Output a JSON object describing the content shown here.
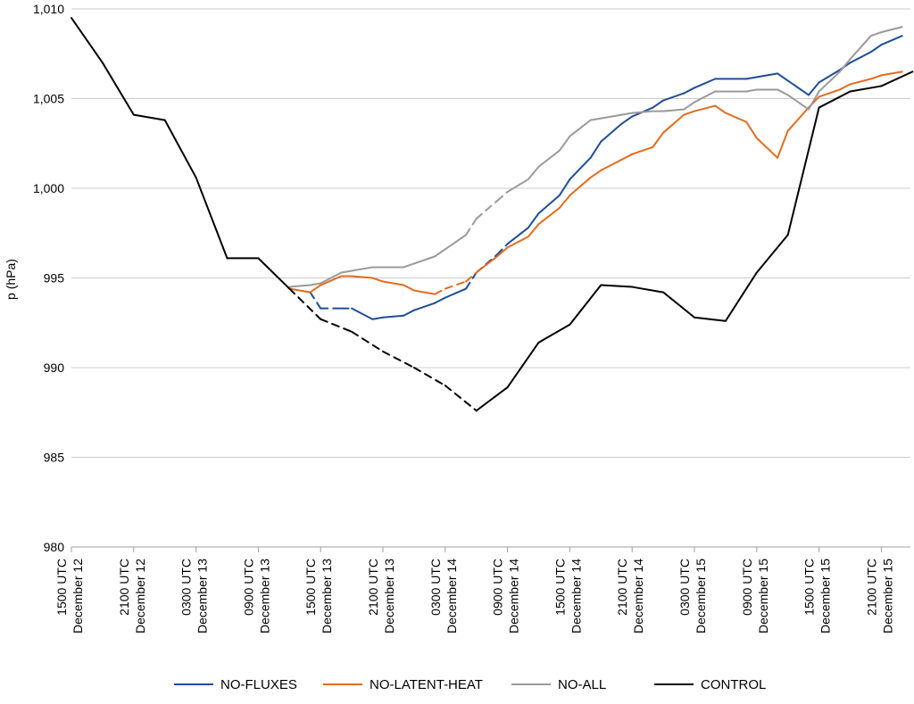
{
  "chart_data": {
    "type": "line",
    "ylabel": "p (hPa)",
    "ylim": [
      980,
      1010
    ],
    "yticks": [
      980,
      985,
      990,
      995,
      1000,
      1005,
      1010
    ],
    "ytick_labels": [
      "980",
      "985",
      "990",
      "995",
      "1,000",
      "1,005",
      "1,010"
    ],
    "grid": "horizontal",
    "legend_position": "bottom",
    "x_tick_labels": [
      {
        "time": "1500 UTC",
        "date": "December 12"
      },
      {
        "time": "2100 UTC",
        "date": "December 12"
      },
      {
        "time": "0300 UTC",
        "date": "December 13"
      },
      {
        "time": "0900 UTC",
        "date": "December 13"
      },
      {
        "time": "1500 UTC",
        "date": "December 13"
      },
      {
        "time": "2100 UTC",
        "date": "December 13"
      },
      {
        "time": "0300 UTC",
        "date": "December 14"
      },
      {
        "time": "0900 UTC",
        "date": "December 14"
      },
      {
        "time": "1500 UTC",
        "date": "December 14"
      },
      {
        "time": "2100 UTC",
        "date": "December 14"
      },
      {
        "time": "0300 UTC",
        "date": "December 15"
      },
      {
        "time": "0900 UTC",
        "date": "December 15"
      },
      {
        "time": "1500 UTC",
        "date": "December 15"
      },
      {
        "time": "2100 UTC",
        "date": "December 15"
      }
    ],
    "series": [
      {
        "name": "NO-FLUXES",
        "color": "#1f4e96",
        "x": [
          3.5,
          3.833,
          4,
          4.333,
          4.5,
          4.833,
          5,
          5.333,
          5.5,
          5.833,
          6,
          6.333,
          6.5,
          6.833,
          7,
          7.333,
          7.5,
          7.833,
          8,
          8.333,
          8.5,
          8.833,
          9,
          9.333,
          9.5,
          9.833,
          10,
          10.333,
          10.5,
          10.833,
          11,
          11.333,
          11.5,
          11.833,
          12,
          12.333,
          12.5,
          12.833,
          13,
          13.333
        ],
        "values": [
          994.4,
          994.2,
          993.3,
          993.3,
          993.3,
          992.7,
          992.8,
          992.9,
          993.2,
          993.6,
          993.9,
          994.4,
          995.3,
          996.3,
          996.9,
          997.8,
          998.6,
          999.6,
          1000.5,
          1001.7,
          1002.6,
          1003.6,
          1004.0,
          1004.5,
          1004.9,
          1005.3,
          1005.6,
          1006.1,
          1006.1,
          1006.1,
          1006.2,
          1006.4,
          1006.0,
          1005.2,
          1005.9,
          1006.6,
          1007.0,
          1007.6,
          1008.0,
          1008.5
        ],
        "dashed_ranges": [
          [
            3.5,
            4.5
          ],
          [
            6.333,
            7
          ]
        ]
      },
      {
        "name": "NO-LATENT-HEAT",
        "color": "#e36c1e",
        "x": [
          3.5,
          3.833,
          4,
          4.333,
          4.5,
          4.833,
          5,
          5.333,
          5.5,
          5.833,
          6,
          6.333,
          6.5,
          6.833,
          7,
          7.333,
          7.5,
          7.833,
          8,
          8.333,
          8.5,
          8.833,
          9,
          9.333,
          9.5,
          9.833,
          10,
          10.333,
          10.5,
          10.833,
          11,
          11.333,
          11.5,
          11.833,
          12,
          12.333,
          12.5,
          12.833,
          13,
          13.333
        ],
        "values": [
          994.4,
          994.2,
          994.6,
          995.1,
          995.1,
          995.0,
          994.8,
          994.6,
          994.3,
          994.1,
          994.4,
          994.8,
          995.3,
          996.2,
          996.7,
          997.3,
          998.0,
          998.9,
          999.6,
          1000.6,
          1001.0,
          1001.6,
          1001.9,
          1002.3,
          1003.1,
          1004.1,
          1004.3,
          1004.6,
          1004.2,
          1003.7,
          1002.8,
          1001.7,
          1003.2,
          1004.5,
          1005.1,
          1005.5,
          1005.8,
          1006.1,
          1006.3,
          1006.5
        ],
        "dashed_ranges": [
          [
            5.833,
            6.5
          ]
        ]
      },
      {
        "name": "NO-ALL",
        "color": "#9a9a9a",
        "x": [
          3.5,
          3.833,
          4,
          4.333,
          4.5,
          4.833,
          5,
          5.333,
          5.5,
          5.833,
          6,
          6.333,
          6.5,
          6.833,
          7,
          7.333,
          7.5,
          7.833,
          8,
          8.333,
          8.5,
          8.833,
          9,
          9.333,
          9.5,
          9.833,
          10,
          10.333,
          10.5,
          10.833,
          11,
          11.333,
          11.5,
          11.833,
          12,
          12.333,
          12.5,
          12.833,
          13,
          13.333
        ],
        "values": [
          994.5,
          994.6,
          994.7,
          995.3,
          995.4,
          995.6,
          995.6,
          995.6,
          995.8,
          996.2,
          996.6,
          997.4,
          998.3,
          999.3,
          999.8,
          1000.5,
          1001.2,
          1002.1,
          1002.9,
          1003.8,
          1003.9,
          1004.1,
          1004.2,
          1004.3,
          1004.3,
          1004.4,
          1004.8,
          1005.4,
          1005.4,
          1005.4,
          1005.5,
          1005.5,
          1005.2,
          1004.4,
          1005.4,
          1006.5,
          1007.2,
          1008.5,
          1008.7,
          1009.0
        ],
        "dashed_ranges": [
          [
            6.333,
            7
          ]
        ]
      },
      {
        "name": "CONTROL",
        "color": "#000000",
        "x": [
          0,
          0.5,
          1,
          1.5,
          2,
          2.5,
          3,
          3.5,
          4,
          4.5,
          5,
          5.5,
          6,
          6.5,
          7,
          7.5,
          8,
          8.5,
          9,
          9.5,
          10,
          10.5,
          11,
          11.5,
          12,
          12.5,
          13,
          13.5
        ],
        "values": [
          1009.5,
          1007.0,
          1004.1,
          1003.8,
          1000.6,
          996.1,
          996.1,
          994.4,
          992.7,
          992.0,
          990.9,
          990.0,
          989.0,
          987.6,
          988.9,
          991.4,
          992.4,
          994.6,
          994.5,
          994.2,
          992.8,
          992.6,
          995.3,
          997.4,
          1004.5,
          1005.4,
          1005.7,
          1006.5
        ],
        "dashed_ranges": [
          [
            3.5,
            6.5
          ]
        ]
      }
    ]
  }
}
